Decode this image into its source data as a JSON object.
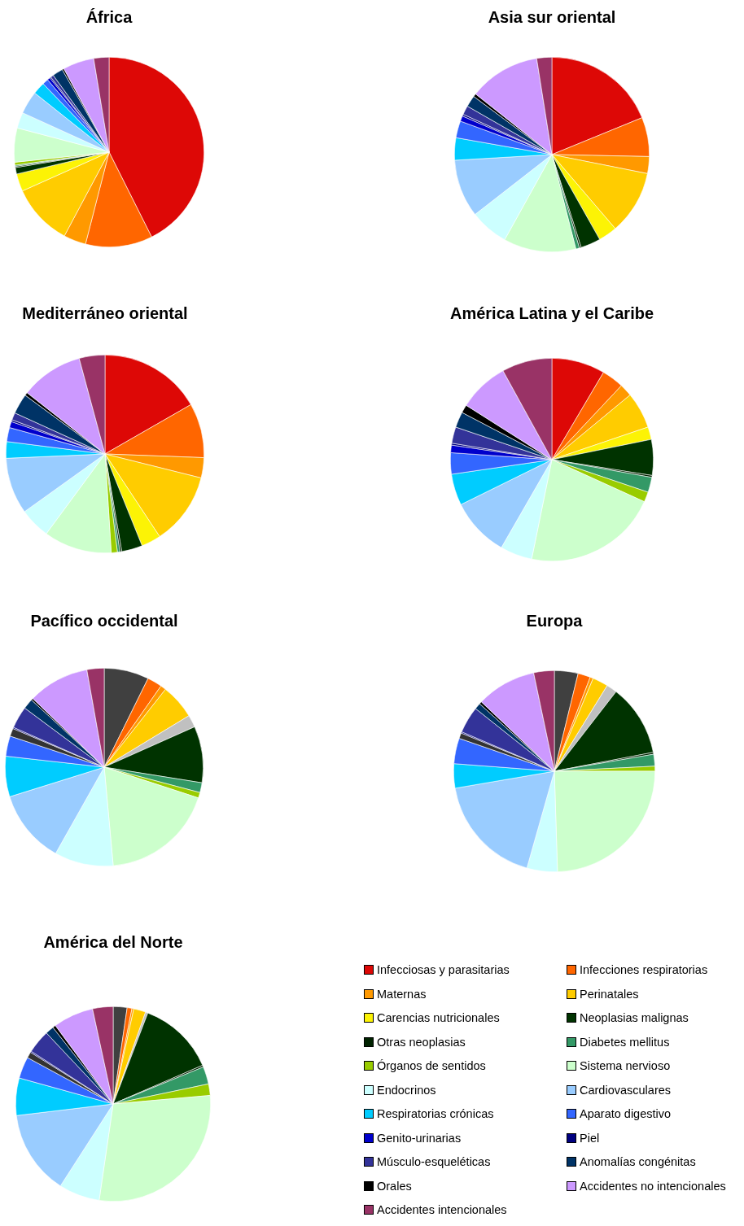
{
  "chart_data": [
    {
      "type": "pie",
      "title": "África",
      "legend": "bottom right",
      "categories": [
        "Infecciosas y parasitarias",
        "Infecciones respiratorias",
        "Maternas",
        "Perinatales",
        "Carencias nutricionales",
        "Neoplasias malignas",
        "Otras neoplasias",
        "Diabetes mellitus",
        "Órganos de sentidos",
        "Sistema nervioso",
        "Endocrinos",
        "Cardiovasculares",
        "Respiratorias crónicas",
        "Aparato digestivo",
        "Genito-urinarias",
        "Piel",
        "Músculo-esqueléticas",
        "Anomalías congénitas",
        "Orales",
        "Accidentes no intencionales",
        "Accidentes intencionales"
      ],
      "values": [
        42.6,
        11.4,
        3.8,
        10.5,
        3.0,
        1.1,
        0.2,
        0.2,
        0.5,
        5.8,
        2.7,
        3.9,
        2.1,
        1.0,
        0.5,
        0.2,
        0.5,
        1.8,
        0.3,
        5.3,
        2.6
      ],
      "colors": [
        "#dd0806",
        "#ff6600",
        "#ff9900",
        "#ffcc00",
        "#fcf305",
        "#003300",
        "#002200",
        "#339966",
        "#99cc00",
        "#ccffcc",
        "#ccffff",
        "#99ccff",
        "#00ccff",
        "#3366ff",
        "#0000cc",
        "#000080",
        "#333399",
        "#003366",
        "#000000",
        "#cc99ff",
        "#993366"
      ]
    },
    {
      "type": "pie",
      "title": "Asia sur oriental",
      "categories": [
        null,
        null,
        null,
        null,
        null,
        null,
        null,
        null,
        null,
        null,
        null,
        null,
        null,
        null,
        null,
        null,
        null,
        null,
        null,
        null,
        null
      ],
      "values": [
        18.8,
        6.5,
        2.8,
        10.6,
        3.1,
        3.3,
        0.3,
        0.6,
        null,
        12.0,
        6.4,
        9.6,
        3.7,
        2.8,
        0.9,
        0.3,
        1.5,
        1.9,
        0.5,
        11.8,
        2.5
      ],
      "colors": [
        "#dd0806",
        "#ff6600",
        "#ff9900",
        "#ffcc00",
        "#fcf305",
        "#003300",
        "#002200",
        "#339966",
        "#99cc00",
        "#ccffcc",
        "#ccffff",
        "#99ccff",
        "#00ccff",
        "#3366ff",
        "#0000cc",
        "#000080",
        "#333399",
        "#003366",
        "#000000",
        "#cc99ff",
        "#993366"
      ]
    },
    {
      "type": "pie",
      "title": "Mediterráneo oriental",
      "categories": [
        null,
        null,
        null,
        null,
        null,
        null,
        null,
        null,
        null,
        null,
        null,
        null,
        null,
        null,
        null,
        null,
        null,
        null,
        null,
        null,
        null
      ],
      "values": [
        16.7,
        8.9,
        3.3,
        11.8,
        3.2,
        3.4,
        0.3,
        0.4,
        1.0,
        11.1,
        5.0,
        9.2,
        2.7,
        2.3,
        1.0,
        0.3,
        1.2,
        3.3,
        0.5,
        10.2,
        4.2
      ],
      "colors": [
        "#dd0806",
        "#ff6600",
        "#ff9900",
        "#ffcc00",
        "#fcf305",
        "#003300",
        "#002200",
        "#339966",
        "#99cc00",
        "#ccffcc",
        "#ccffff",
        "#99ccff",
        "#00ccff",
        "#3366ff",
        "#0000cc",
        "#000080",
        "#333399",
        "#003366",
        "#000000",
        "#cc99ff",
        "#993366"
      ]
    },
    {
      "type": "pie",
      "title": "América Latina y el Caribe",
      "categories": [
        null,
        null,
        null,
        null,
        null,
        null,
        null,
        null,
        null,
        null,
        null,
        null,
        null,
        null,
        null,
        null,
        null,
        null,
        null,
        null,
        null
      ],
      "values": [
        8.5,
        3.5,
        2.0,
        5.8,
        2.0,
        5.7,
        0.3,
        2.4,
        1.6,
        21.4,
        5.1,
        9.4,
        5.0,
        3.4,
        1.2,
        0.3,
        2.6,
        2.5,
        1.3,
        8.0,
        8.0
      ],
      "colors": [
        "#dd0806",
        "#ff6600",
        "#ff9900",
        "#ffcc00",
        "#fcf305",
        "#003300",
        "#002200",
        "#339966",
        "#99cc00",
        "#ccffcc",
        "#ccffff",
        "#99ccff",
        "#00ccff",
        "#3366ff",
        "#0000cc",
        "#000080",
        "#333399",
        "#003366",
        "#000000",
        "#cc99ff",
        "#993366"
      ]
    },
    {
      "type": "pie",
      "title": "Pacífico occidental",
      "categories": [
        null,
        null,
        null,
        null,
        null,
        null,
        null,
        null,
        null,
        null,
        null,
        null,
        null,
        null,
        null,
        null,
        null,
        null,
        null,
        null,
        null
      ],
      "values": [
        7.3,
        2.4,
        0.9,
        5.7,
        2.0,
        9.2,
        null,
        1.6,
        0.9,
        18.5,
        9.6,
        12.0,
        6.6,
        3.3,
        1.3,
        0.2,
        3.6,
        1.7,
        0.3,
        10.0,
        2.8
      ],
      "colors": [
        "#404040",
        "#ff6600",
        "#ff9900",
        "#ffcc00",
        "#c0c0c0",
        "#003300",
        "#002200",
        "#339966",
        "#99cc00",
        "#ccffcc",
        "#ccffff",
        "#99ccff",
        "#00ccff",
        "#3366ff",
        "#333333",
        "#000080",
        "#333399",
        "#003366",
        "#000000",
        "#cc99ff",
        "#993366"
      ]
    },
    {
      "type": "pie",
      "title": "Europa",
      "categories": [
        null,
        null,
        null,
        null,
        null,
        null,
        null,
        null,
        null,
        null,
        null,
        null,
        null,
        null,
        null,
        null,
        null,
        null,
        null,
        null,
        null
      ],
      "values": [
        3.8,
        2.0,
        0.5,
        2.5,
        1.7,
        11.5,
        0.3,
        1.9,
        0.8,
        24.5,
        4.9,
        17.9,
        3.9,
        4.1,
        0.9,
        0.2,
        4.3,
        1.0,
        0.4,
        9.6,
        3.3
      ],
      "colors": [
        "#404040",
        "#ff6600",
        "#ff9900",
        "#ffcc00",
        "#c0c0c0",
        "#003300",
        "#002200",
        "#339966",
        "#99cc00",
        "#ccffcc",
        "#ccffff",
        "#99ccff",
        "#00ccff",
        "#3366ff",
        "#333333",
        "#000080",
        "#333399",
        "#003366",
        "#000000",
        "#cc99ff",
        "#993366"
      ]
    },
    {
      "type": "pie",
      "title": "América del Norte",
      "categories": [
        null,
        null,
        null,
        null,
        null,
        null,
        null,
        null,
        null,
        null,
        null,
        null,
        null,
        null,
        null,
        null,
        null,
        null,
        null,
        null,
        null
      ],
      "values": [
        2.3,
        0.8,
        0.3,
        2.0,
        0.4,
        12.7,
        0.3,
        2.9,
        1.9,
        28.7,
        6.8,
        14.0,
        6.2,
        3.6,
        1.0,
        0.2,
        3.9,
        1.4,
        0.5,
        6.7,
        3.4
      ],
      "colors": [
        "#404040",
        "#ff6600",
        "#ff9900",
        "#ffcc00",
        "#c0c0c0",
        "#003300",
        "#002200",
        "#339966",
        "#99cc00",
        "#ccffcc",
        "#ccffff",
        "#99ccff",
        "#00ccff",
        "#3366ff",
        "#333333",
        "#000080",
        "#333399",
        "#003366",
        "#000000",
        "#cc99ff",
        "#993366"
      ]
    }
  ]
}
